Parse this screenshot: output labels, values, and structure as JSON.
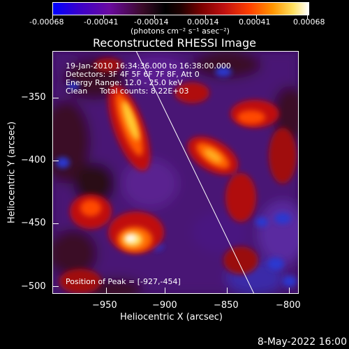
{
  "colorbar": {
    "tick_labels": [
      "-0.00068",
      "-0.00041",
      "-0.00014",
      "0.00014",
      "0.00041",
      "0.00068"
    ],
    "units": "(photons cm⁻² s⁻¹ asec⁻²)"
  },
  "plot": {
    "title": "Reconstructed RHESSI Image",
    "xlabel": "Heliocentric X (arcsec)",
    "ylabel": "Heliocentric Y (arcsec)",
    "x_tick_labels": [
      "−950",
      "−900",
      "−850",
      "−800"
    ],
    "y_tick_labels": [
      "−350",
      "−400",
      "−450",
      "−500"
    ],
    "xlim": [
      -990,
      -797
    ],
    "ylim": [
      -507,
      -320
    ]
  },
  "annotations": {
    "line1": "19-Jan-2010 16:34:36.000 to 16:38:00.000",
    "line2": "Detectors: 3F 4F 5F 6F 7F 8F, Att 0",
    "line3": "Energy Range: 12.0 - 25.0 keV",
    "line4": "Clean     Total counts: 8.22E+03",
    "peak": "Position of Peak = [-927,-454]"
  },
  "footer": {
    "date": "8-May-2022 16:00"
  }
}
